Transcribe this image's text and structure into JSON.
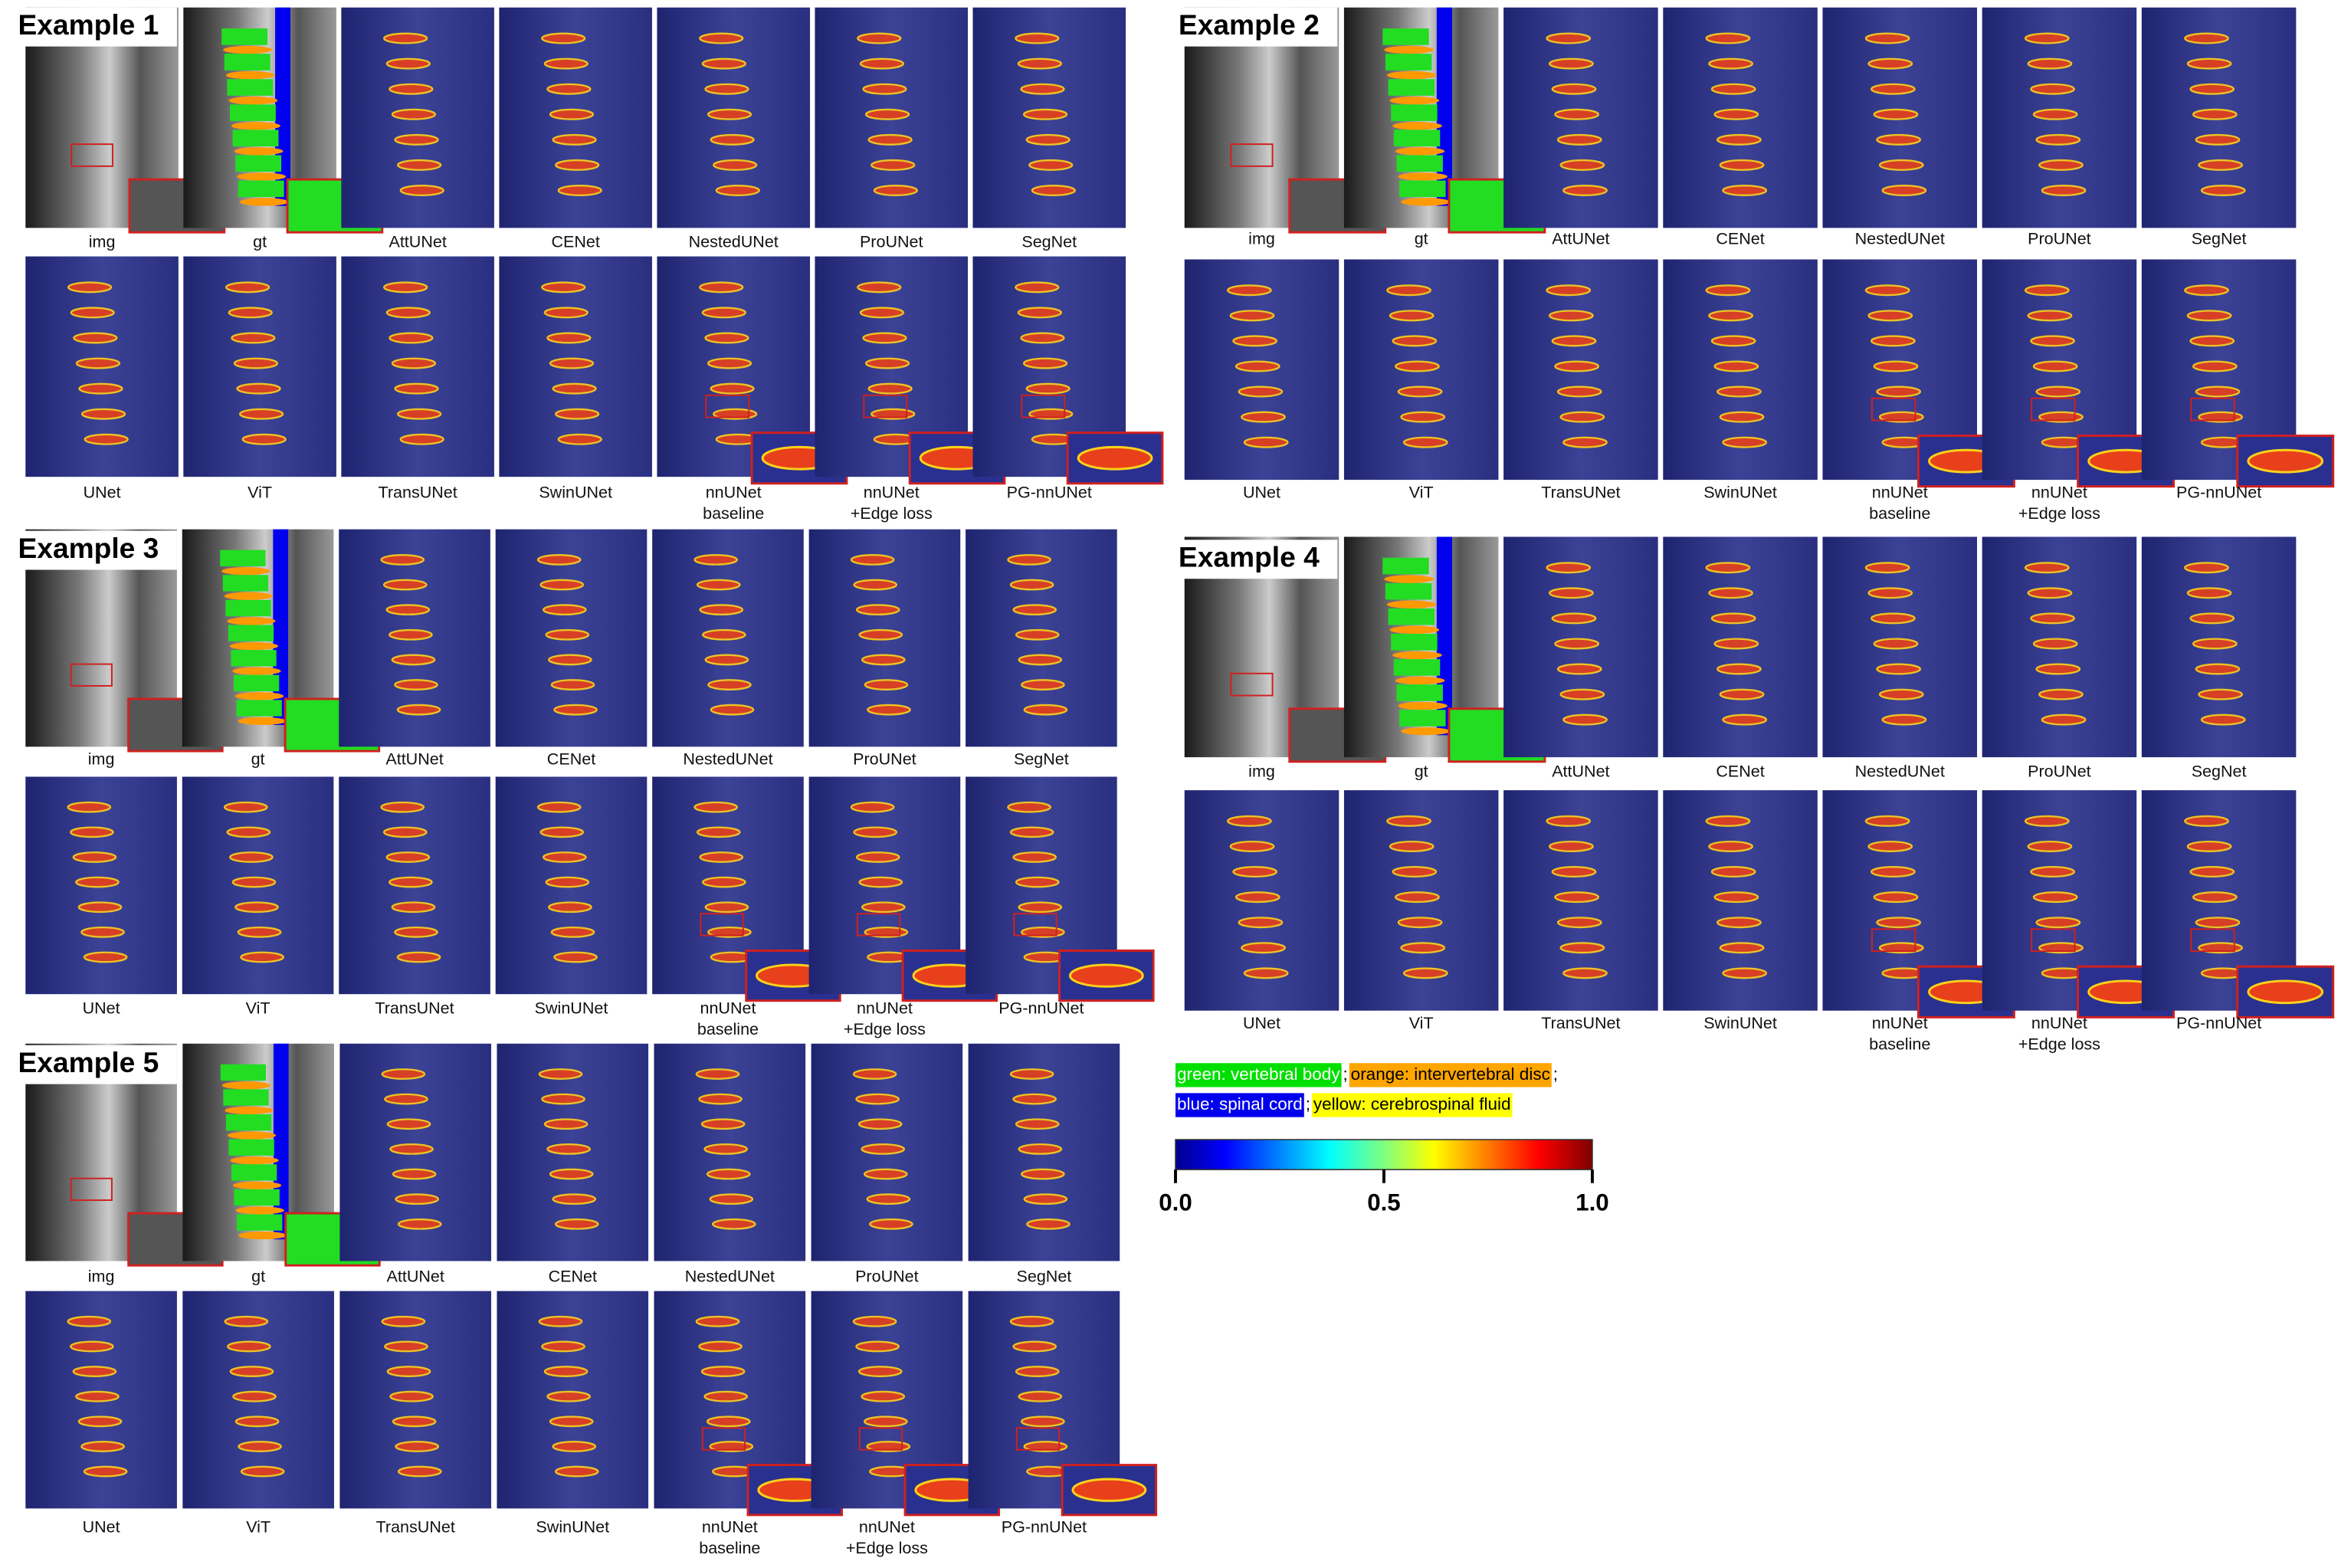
{
  "examples": [
    {
      "title": "Example 1",
      "rows": [
        [
          "img",
          "gt",
          "AttUNet",
          "CENet",
          "NestedUNet",
          "ProUNet",
          "SegNet"
        ],
        [
          "UNet",
          "ViT",
          "TransUNet",
          "SwinUNet",
          [
            "nnUNet",
            "baseline"
          ],
          [
            "nnUNet",
            "+Edge loss"
          ],
          "PG-nnUNet"
        ]
      ]
    },
    {
      "title": "Example 2",
      "rows": [
        [
          "img",
          "gt",
          "AttUNet",
          "CENet",
          "NestedUNet",
          "ProUNet",
          "SegNet"
        ],
        [
          "UNet",
          "ViT",
          "TransUNet",
          "SwinUNet",
          [
            "nnUNet",
            "baseline"
          ],
          [
            "nnUNet",
            "+Edge loss"
          ],
          "PG-nnUNet"
        ]
      ]
    },
    {
      "title": "Example 3",
      "rows": [
        [
          "img",
          "gt",
          "AttUNet",
          "CENet",
          "NestedUNet",
          "ProUNet",
          "SegNet"
        ],
        [
          "UNet",
          "ViT",
          "TransUNet",
          "SwinUNet",
          [
            "nnUNet",
            "baseline"
          ],
          [
            "nnUNet",
            "+Edge loss"
          ],
          "PG-nnUNet"
        ]
      ]
    },
    {
      "title": "Example 4",
      "rows": [
        [
          "img",
          "gt",
          "AttUNet",
          "CENet",
          "NestedUNet",
          "ProUNet",
          "SegNet"
        ],
        [
          "UNet",
          "ViT",
          "TransUNet",
          "SwinUNet",
          [
            "nnUNet",
            "baseline"
          ],
          [
            "nnUNet",
            "+Edge loss"
          ],
          "PG-nnUNet"
        ]
      ]
    },
    {
      "title": "Example 5",
      "rows": [
        [
          "img",
          "gt",
          "AttUNet",
          "CENet",
          "NestedUNet",
          "ProUNet",
          "SegNet"
        ],
        [
          "UNet",
          "ViT",
          "TransUNet",
          "SwinUNet",
          [
            "nnUNet",
            "baseline"
          ],
          [
            "nnUNet",
            "+Edge loss"
          ],
          "PG-nnUNet"
        ]
      ]
    }
  ],
  "legend": [
    [
      {
        "text": "green: vertebral body",
        "color": "#00e000"
      },
      {
        "text": "; "
      },
      {
        "text": "orange: intervertebral disc",
        "color": "#ffa500"
      },
      {
        "text": ";"
      }
    ],
    [
      {
        "text": "blue: spinal cord",
        "color": "#0000ee"
      },
      {
        "text": "; "
      },
      {
        "text": "yellow: cerebrospinal fluid",
        "color": "#ffff00"
      }
    ]
  ],
  "colorbar": {
    "lim": [
      0,
      1
    ],
    "ticks": [
      {
        "value": 0,
        "label": "0.0"
      },
      {
        "value": 0.5,
        "label": "0.5"
      },
      {
        "value": 1,
        "label": "1.0"
      }
    ]
  }
}
